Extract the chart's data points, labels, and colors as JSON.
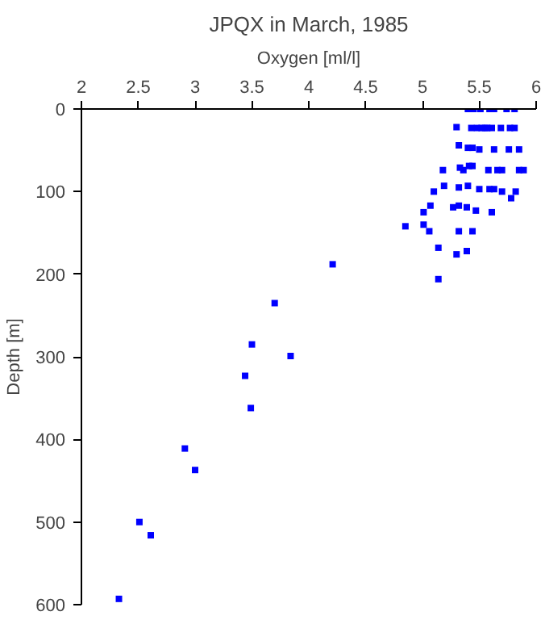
{
  "chart_data": {
    "type": "scatter",
    "title": "JPQX in March, 1985",
    "xlabel": "Oxygen [ml/l]",
    "ylabel": "Depth [m]",
    "xlim": [
      2,
      6
    ],
    "ylim": [
      600,
      0
    ],
    "xticks": [
      2,
      2.5,
      3,
      3.5,
      4,
      4.5,
      5,
      5.5,
      6
    ],
    "yticks": [
      0,
      100,
      200,
      300,
      400,
      500,
      600
    ],
    "marker": "square",
    "grid": false,
    "series": [
      {
        "color": "#0000ff",
        "x": [
          5.4,
          5.45,
          5.51,
          5.59,
          5.63,
          5.74,
          5.81,
          5.3,
          5.43,
          5.48,
          5.52,
          5.55,
          5.57,
          5.61,
          5.69,
          5.77,
          5.81,
          5.32,
          5.4,
          5.44,
          5.5,
          5.63,
          5.76,
          5.85,
          5.18,
          5.33,
          5.36,
          5.41,
          5.44,
          5.58,
          5.66,
          5.7,
          5.85,
          5.89,
          5.19,
          5.1,
          5.32,
          5.4,
          5.5,
          5.59,
          5.63,
          5.7,
          5.82,
          5.78,
          5.07,
          5.27,
          5.32,
          5.39,
          5.47,
          5.61,
          5.01,
          4.85,
          5.01,
          5.06,
          5.32,
          5.44,
          5.14,
          5.39,
          5.3,
          5.14,
          4.21,
          3.7,
          3.84,
          3.5,
          3.44,
          3.49,
          2.91,
          3.0,
          2.51,
          2.61,
          2.33
        ],
        "values": [
          0,
          0,
          0,
          0,
          0,
          0,
          0,
          22,
          23,
          23,
          23,
          23,
          23,
          23,
          23,
          23,
          23,
          44,
          47,
          47,
          49,
          49,
          49,
          49,
          74,
          71,
          74,
          69,
          69,
          74,
          74,
          74,
          74,
          74,
          93,
          100,
          95,
          93,
          97,
          97,
          97,
          100,
          100,
          108,
          117,
          119,
          117,
          119,
          123,
          125,
          125,
          142,
          140,
          148,
          148,
          148,
          168,
          172,
          176,
          206,
          188,
          235,
          299,
          285,
          323,
          362,
          411,
          437,
          500,
          516,
          593
        ]
      }
    ]
  }
}
